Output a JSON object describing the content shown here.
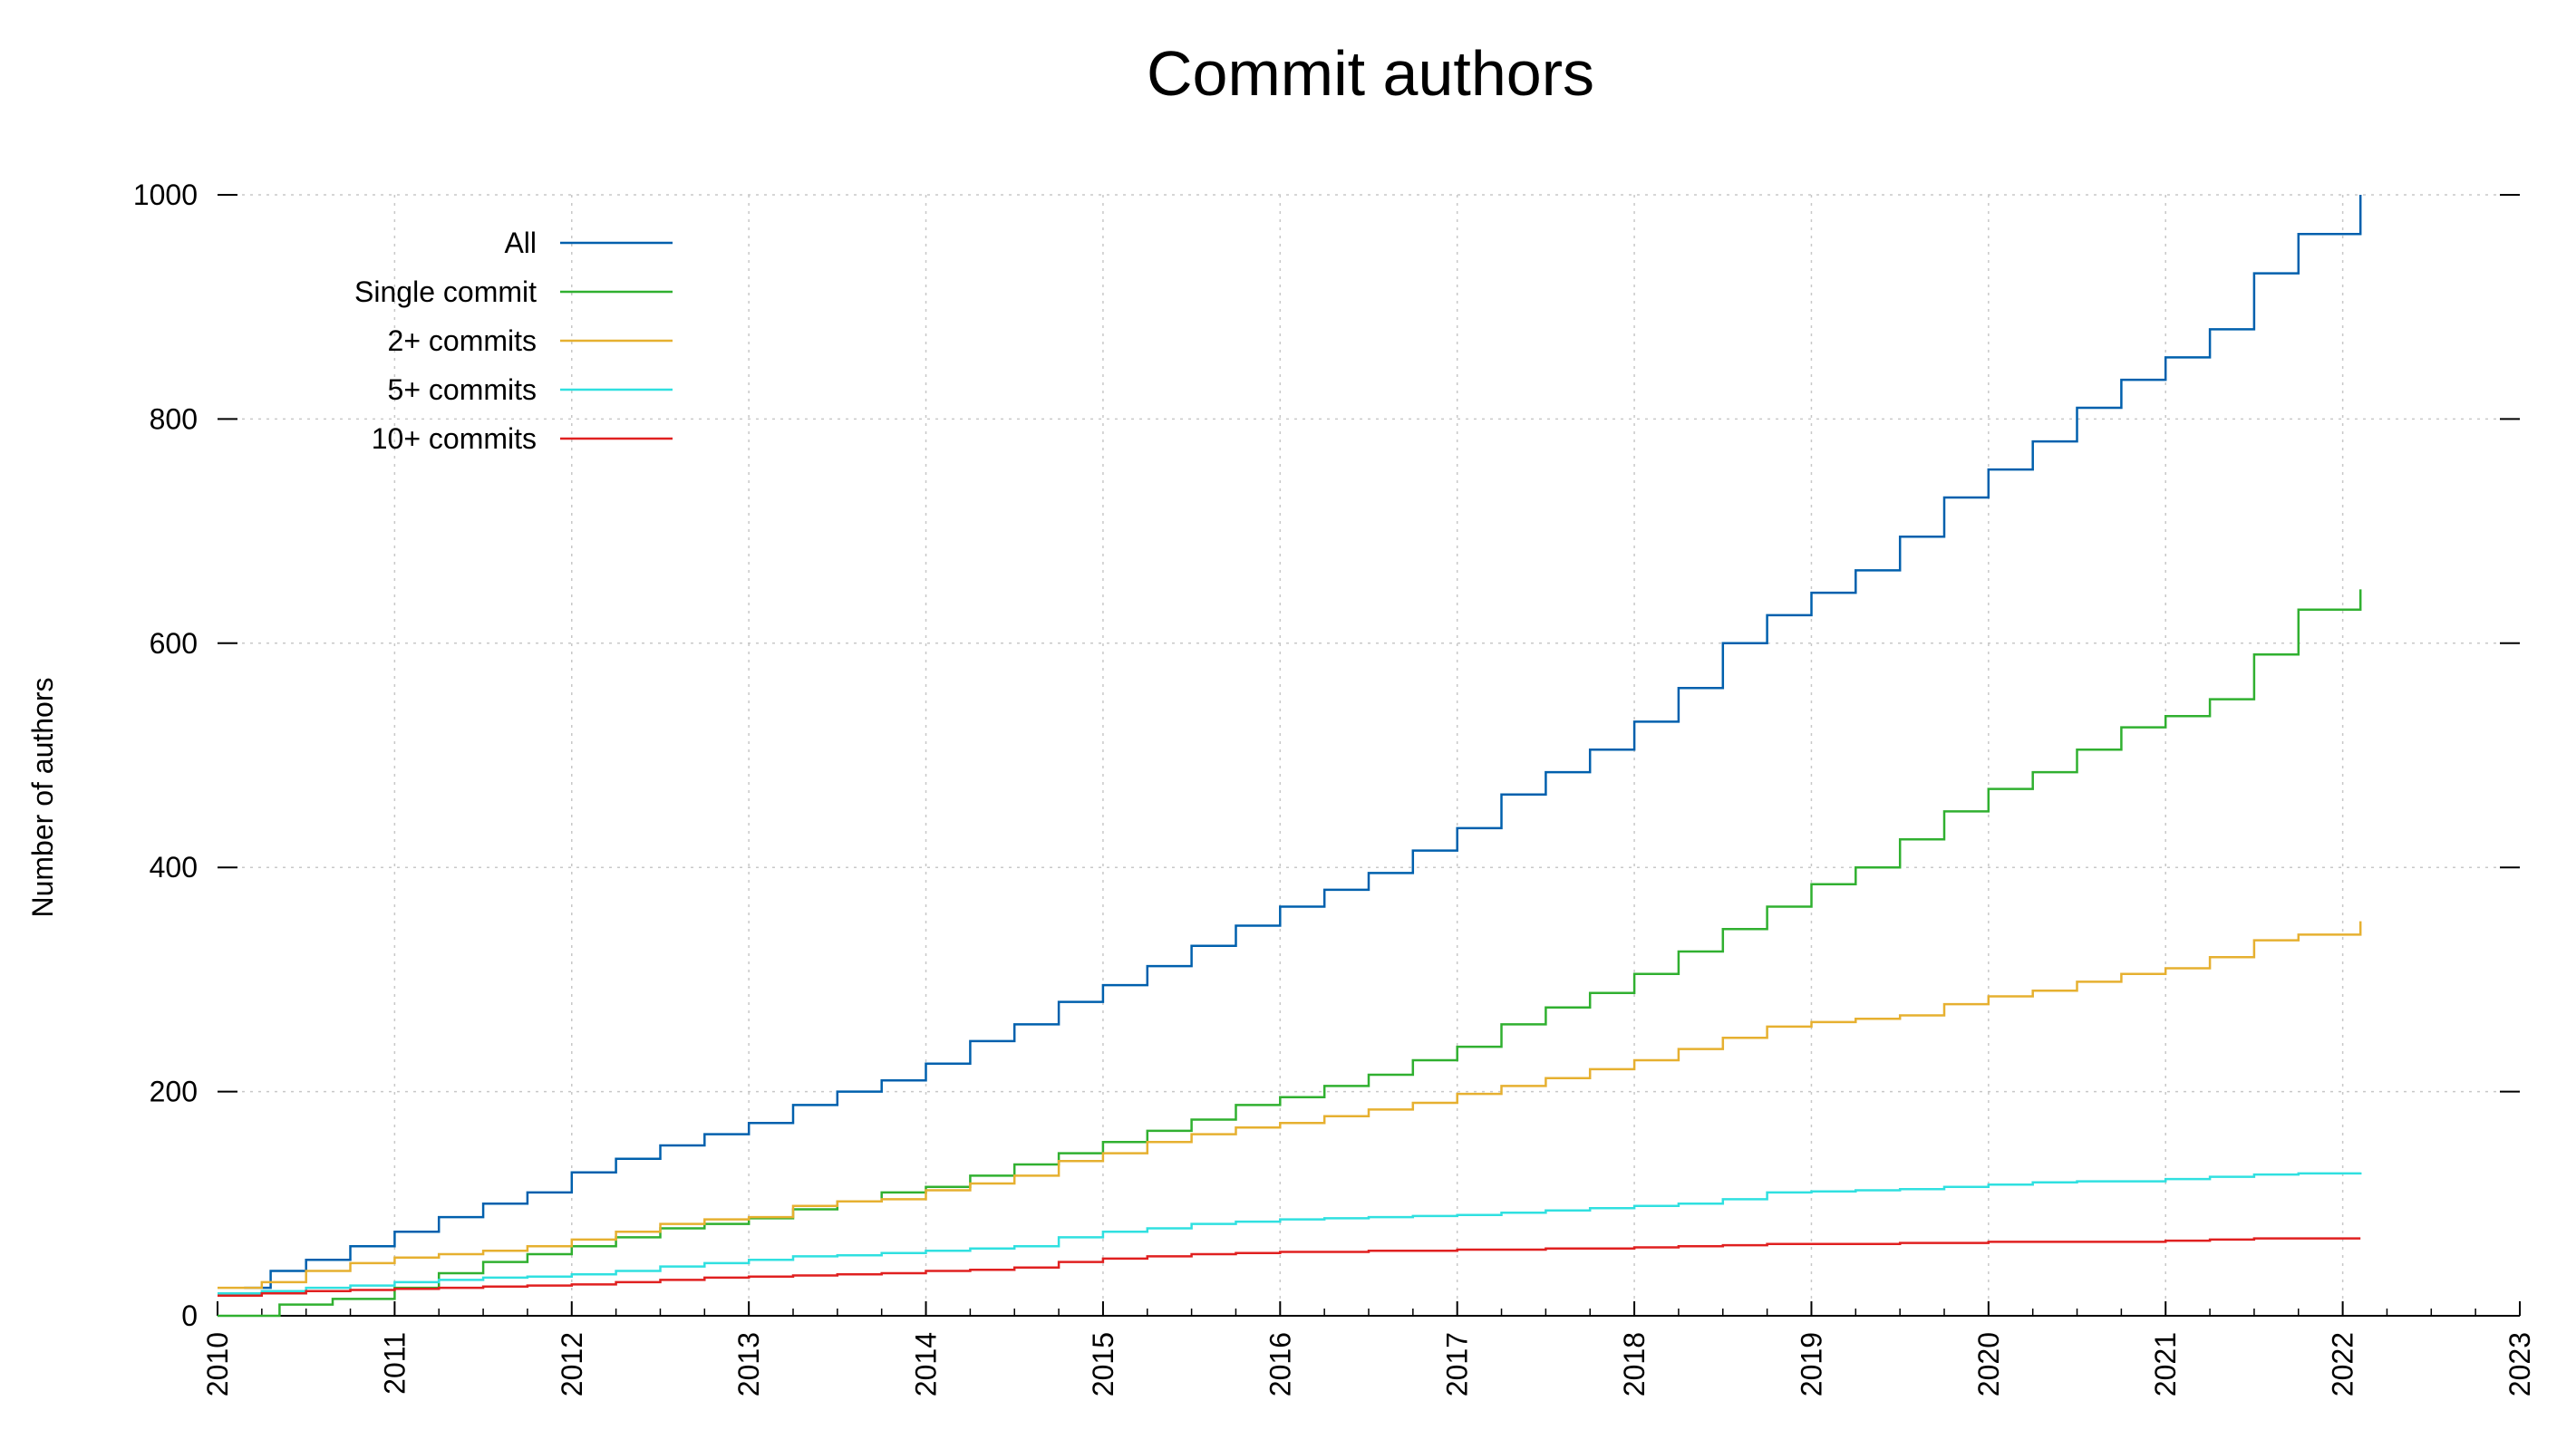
{
  "chart_data": {
    "type": "line",
    "title": "Commit authors",
    "xlabel": "",
    "ylabel": "Number of authors",
    "xlim": [
      2010,
      2023
    ],
    "ylim": [
      0,
      1000
    ],
    "x_ticks": [
      "2010",
      "2011",
      "2012",
      "2013",
      "2014",
      "2015",
      "2016",
      "2017",
      "2018",
      "2019",
      "2020",
      "2021",
      "2022",
      "2023"
    ],
    "y_ticks": [
      "0",
      "200",
      "400",
      "600",
      "800",
      "1000"
    ],
    "grid": true,
    "legend_position": "top-left",
    "series": [
      {
        "name": "All",
        "color": "#0060ad",
        "points": [
          [
            2010.15,
            25
          ],
          [
            2010.3,
            40
          ],
          [
            2010.5,
            50
          ],
          [
            2010.75,
            62
          ],
          [
            2011,
            75
          ],
          [
            2011.25,
            88
          ],
          [
            2011.5,
            100
          ],
          [
            2011.75,
            110
          ],
          [
            2012,
            128
          ],
          [
            2012.25,
            140
          ],
          [
            2012.5,
            152
          ],
          [
            2012.75,
            162
          ],
          [
            2013,
            172
          ],
          [
            2013.25,
            188
          ],
          [
            2013.5,
            200
          ],
          [
            2013.75,
            210
          ],
          [
            2014,
            225
          ],
          [
            2014.25,
            245
          ],
          [
            2014.5,
            260
          ],
          [
            2014.75,
            280
          ],
          [
            2015,
            295
          ],
          [
            2015.25,
            312
          ],
          [
            2015.5,
            330
          ],
          [
            2015.75,
            348
          ],
          [
            2016,
            365
          ],
          [
            2016.25,
            380
          ],
          [
            2016.5,
            395
          ],
          [
            2016.75,
            415
          ],
          [
            2017,
            435
          ],
          [
            2017.25,
            465
          ],
          [
            2017.5,
            485
          ],
          [
            2017.75,
            505
          ],
          [
            2018,
            530
          ],
          [
            2018.25,
            560
          ],
          [
            2018.5,
            600
          ],
          [
            2018.75,
            625
          ],
          [
            2019,
            645
          ],
          [
            2019.25,
            665
          ],
          [
            2019.5,
            695
          ],
          [
            2019.75,
            730
          ],
          [
            2020,
            755
          ],
          [
            2020.25,
            780
          ],
          [
            2020.5,
            810
          ],
          [
            2020.75,
            835
          ],
          [
            2021,
            855
          ],
          [
            2021.25,
            880
          ],
          [
            2021.5,
            930
          ],
          [
            2021.75,
            965
          ],
          [
            2022.1,
            1000
          ]
        ]
      },
      {
        "name": "Single commit",
        "color": "#30b030",
        "points": [
          [
            2010,
            0
          ],
          [
            2010.2,
            0
          ],
          [
            2010.35,
            10
          ],
          [
            2010.65,
            15
          ],
          [
            2011,
            25
          ],
          [
            2011.25,
            38
          ],
          [
            2011.5,
            48
          ],
          [
            2011.75,
            55
          ],
          [
            2012,
            62
          ],
          [
            2012.25,
            70
          ],
          [
            2012.5,
            78
          ],
          [
            2012.75,
            82
          ],
          [
            2013,
            87
          ],
          [
            2013.25,
            95
          ],
          [
            2013.5,
            102
          ],
          [
            2013.75,
            110
          ],
          [
            2014,
            115
          ],
          [
            2014.25,
            125
          ],
          [
            2014.5,
            135
          ],
          [
            2014.75,
            145
          ],
          [
            2015,
            155
          ],
          [
            2015.25,
            165
          ],
          [
            2015.5,
            175
          ],
          [
            2015.75,
            188
          ],
          [
            2016,
            195
          ],
          [
            2016.25,
            205
          ],
          [
            2016.5,
            215
          ],
          [
            2016.75,
            228
          ],
          [
            2017,
            240
          ],
          [
            2017.25,
            260
          ],
          [
            2017.5,
            275
          ],
          [
            2017.75,
            288
          ],
          [
            2018,
            305
          ],
          [
            2018.25,
            325
          ],
          [
            2018.5,
            345
          ],
          [
            2018.75,
            365
          ],
          [
            2019,
            385
          ],
          [
            2019.25,
            400
          ],
          [
            2019.5,
            425
          ],
          [
            2019.75,
            450
          ],
          [
            2020,
            470
          ],
          [
            2020.25,
            485
          ],
          [
            2020.5,
            505
          ],
          [
            2020.75,
            525
          ],
          [
            2021,
            535
          ],
          [
            2021.25,
            550
          ],
          [
            2021.5,
            590
          ],
          [
            2021.75,
            630
          ],
          [
            2022.1,
            648
          ]
        ]
      },
      {
        "name": "2+ commits",
        "color": "#e6b030",
        "points": [
          [
            2010,
            25
          ],
          [
            2010.25,
            30
          ],
          [
            2010.5,
            40
          ],
          [
            2010.75,
            47
          ],
          [
            2011,
            52
          ],
          [
            2011.25,
            55
          ],
          [
            2011.5,
            58
          ],
          [
            2011.75,
            62
          ],
          [
            2012,
            68
          ],
          [
            2012.25,
            75
          ],
          [
            2012.5,
            82
          ],
          [
            2012.75,
            86
          ],
          [
            2013,
            88
          ],
          [
            2013.25,
            98
          ],
          [
            2013.5,
            102
          ],
          [
            2013.75,
            104
          ],
          [
            2014,
            112
          ],
          [
            2014.25,
            118
          ],
          [
            2014.5,
            125
          ],
          [
            2014.75,
            138
          ],
          [
            2015,
            145
          ],
          [
            2015.25,
            155
          ],
          [
            2015.5,
            162
          ],
          [
            2015.75,
            168
          ],
          [
            2016,
            172
          ],
          [
            2016.25,
            178
          ],
          [
            2016.5,
            184
          ],
          [
            2016.75,
            190
          ],
          [
            2017,
            198
          ],
          [
            2017.25,
            205
          ],
          [
            2017.5,
            212
          ],
          [
            2017.75,
            220
          ],
          [
            2018,
            228
          ],
          [
            2018.25,
            238
          ],
          [
            2018.5,
            248
          ],
          [
            2018.75,
            258
          ],
          [
            2019,
            262
          ],
          [
            2019.25,
            265
          ],
          [
            2019.5,
            268
          ],
          [
            2019.75,
            278
          ],
          [
            2020,
            285
          ],
          [
            2020.25,
            290
          ],
          [
            2020.5,
            298
          ],
          [
            2020.75,
            305
          ],
          [
            2021,
            310
          ],
          [
            2021.25,
            320
          ],
          [
            2021.5,
            335
          ],
          [
            2021.75,
            340
          ],
          [
            2022.1,
            352
          ]
        ]
      },
      {
        "name": "5+ commits",
        "color": "#30e0e0",
        "points": [
          [
            2010,
            20
          ],
          [
            2010.25,
            22
          ],
          [
            2010.5,
            25
          ],
          [
            2010.75,
            27
          ],
          [
            2011,
            30
          ],
          [
            2011.25,
            32
          ],
          [
            2011.5,
            34
          ],
          [
            2011.75,
            35
          ],
          [
            2012,
            37
          ],
          [
            2012.25,
            40
          ],
          [
            2012.5,
            44
          ],
          [
            2012.75,
            47
          ],
          [
            2013,
            50
          ],
          [
            2013.25,
            53
          ],
          [
            2013.5,
            54
          ],
          [
            2013.75,
            56
          ],
          [
            2014,
            58
          ],
          [
            2014.25,
            60
          ],
          [
            2014.5,
            62
          ],
          [
            2014.75,
            70
          ],
          [
            2015,
            75
          ],
          [
            2015.25,
            78
          ],
          [
            2015.5,
            82
          ],
          [
            2015.75,
            84
          ],
          [
            2016,
            86
          ],
          [
            2016.25,
            87
          ],
          [
            2016.5,
            88
          ],
          [
            2016.75,
            89
          ],
          [
            2017,
            90
          ],
          [
            2017.25,
            92
          ],
          [
            2017.5,
            94
          ],
          [
            2017.75,
            96
          ],
          [
            2018,
            98
          ],
          [
            2018.25,
            100
          ],
          [
            2018.5,
            104
          ],
          [
            2018.75,
            110
          ],
          [
            2019,
            111
          ],
          [
            2019.25,
            112
          ],
          [
            2019.5,
            113
          ],
          [
            2019.75,
            115
          ],
          [
            2020,
            117
          ],
          [
            2020.25,
            119
          ],
          [
            2020.5,
            120
          ],
          [
            2020.75,
            120
          ],
          [
            2021,
            122
          ],
          [
            2021.25,
            124
          ],
          [
            2021.5,
            126
          ],
          [
            2021.75,
            127
          ],
          [
            2022.1,
            128
          ]
        ]
      },
      {
        "name": "10+ commits",
        "color": "#e02020",
        "points": [
          [
            2010,
            18
          ],
          [
            2010.25,
            20
          ],
          [
            2010.5,
            22
          ],
          [
            2010.75,
            23
          ],
          [
            2011,
            24
          ],
          [
            2011.25,
            25
          ],
          [
            2011.5,
            26
          ],
          [
            2011.75,
            27
          ],
          [
            2012,
            28
          ],
          [
            2012.25,
            30
          ],
          [
            2012.5,
            32
          ],
          [
            2012.75,
            34
          ],
          [
            2013,
            35
          ],
          [
            2013.25,
            36
          ],
          [
            2013.5,
            37
          ],
          [
            2013.75,
            38
          ],
          [
            2014,
            40
          ],
          [
            2014.25,
            41
          ],
          [
            2014.5,
            43
          ],
          [
            2014.75,
            48
          ],
          [
            2015,
            51
          ],
          [
            2015.25,
            53
          ],
          [
            2015.5,
            55
          ],
          [
            2015.75,
            56
          ],
          [
            2016,
            57
          ],
          [
            2016.25,
            57
          ],
          [
            2016.5,
            58
          ],
          [
            2016.75,
            58
          ],
          [
            2017,
            59
          ],
          [
            2017.25,
            59
          ],
          [
            2017.5,
            60
          ],
          [
            2017.75,
            60
          ],
          [
            2018,
            61
          ],
          [
            2018.25,
            62
          ],
          [
            2018.5,
            63
          ],
          [
            2018.75,
            64
          ],
          [
            2019,
            64
          ],
          [
            2019.25,
            64
          ],
          [
            2019.5,
            65
          ],
          [
            2019.75,
            65
          ],
          [
            2020,
            66
          ],
          [
            2020.25,
            66
          ],
          [
            2020.5,
            66
          ],
          [
            2020.75,
            66
          ],
          [
            2021,
            67
          ],
          [
            2021.25,
            68
          ],
          [
            2021.5,
            69
          ],
          [
            2021.75,
            69
          ],
          [
            2022.1,
            69
          ]
        ]
      }
    ]
  }
}
